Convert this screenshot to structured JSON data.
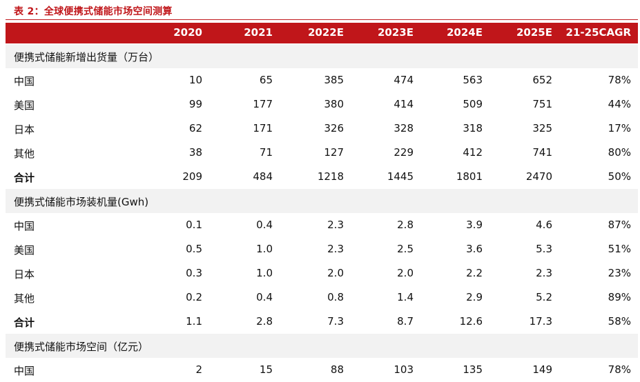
{
  "title": "表 2：全球便携式储能市场空间测算",
  "columns": [
    "2020",
    "2021",
    "2022E",
    "2023E",
    "2024E",
    "2025E",
    "21-25CAGR"
  ],
  "rows": [
    {
      "kind": "section",
      "label": "便携式储能新增出货量（万台）",
      "values": []
    },
    {
      "kind": "data",
      "label": "中国",
      "values": [
        "10",
        "65",
        "385",
        "474",
        "563",
        "652",
        "78%"
      ]
    },
    {
      "kind": "data",
      "label": "美国",
      "values": [
        "99",
        "177",
        "380",
        "414",
        "509",
        "751",
        "44%"
      ]
    },
    {
      "kind": "data",
      "label": "日本",
      "values": [
        "62",
        "171",
        "326",
        "328",
        "318",
        "325",
        "17%"
      ]
    },
    {
      "kind": "data",
      "label": "其他",
      "values": [
        "38",
        "71",
        "127",
        "229",
        "412",
        "741",
        "80%"
      ]
    },
    {
      "kind": "total",
      "label": "合计",
      "values": [
        "209",
        "484",
        "1218",
        "1445",
        "1801",
        "2470",
        "50%"
      ]
    },
    {
      "kind": "section",
      "label": "便携式储能市场装机量(Gwh)",
      "values": []
    },
    {
      "kind": "data",
      "label": "中国",
      "values": [
        "0.1",
        "0.4",
        "2.3",
        "2.8",
        "3.9",
        "4.6",
        "87%"
      ]
    },
    {
      "kind": "data",
      "label": "美国",
      "values": [
        "0.5",
        "1.0",
        "2.3",
        "2.5",
        "3.6",
        "5.3",
        "51%"
      ]
    },
    {
      "kind": "data",
      "label": "日本",
      "values": [
        "0.3",
        "1.0",
        "2.0",
        "2.0",
        "2.2",
        "2.3",
        "23%"
      ]
    },
    {
      "kind": "data",
      "label": "其他",
      "values": [
        "0.2",
        "0.4",
        "0.8",
        "1.4",
        "2.9",
        "5.2",
        "89%"
      ]
    },
    {
      "kind": "total",
      "label": "合计",
      "values": [
        "1.1",
        "2.8",
        "7.3",
        "8.7",
        "12.6",
        "17.3",
        "58%"
      ]
    },
    {
      "kind": "section",
      "label": "便携式储能市场空间（亿元）",
      "values": []
    },
    {
      "kind": "data",
      "label": "中国",
      "values": [
        "2",
        "15",
        "88",
        "103",
        "135",
        "149",
        "78%"
      ]
    }
  ]
}
